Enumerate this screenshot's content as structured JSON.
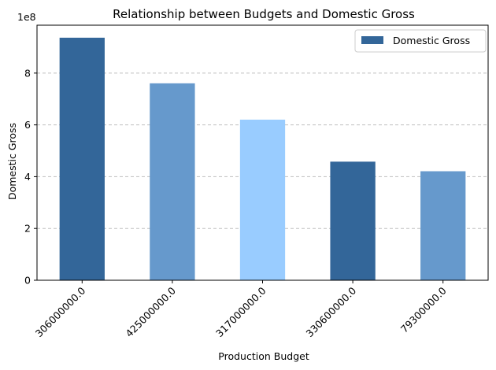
{
  "chart_data": {
    "type": "bar",
    "title": "Relationship between Budgets and Domestic Gross",
    "xlabel": "Production Budget",
    "ylabel": "Domestic Gross",
    "y_scale_label": "1e8",
    "categories": [
      "306000000.0",
      "425000000.0",
      "317000000.0",
      "330600000.0",
      "79300000.0"
    ],
    "series": [
      {
        "name": "Domestic Gross",
        "values": [
          936700000,
          760500000,
          620200000,
          458000000,
          421000000
        ]
      }
    ],
    "bar_colors": [
      "#336699",
      "#6699cc",
      "#99ccff",
      "#336699",
      "#6699cc"
    ],
    "legend_color": "#336699",
    "ylim": [
      0,
      985000000
    ],
    "yticks": [
      0,
      200000000,
      400000000,
      600000000,
      800000000
    ],
    "ytick_labels": [
      "0",
      "2",
      "4",
      "6",
      "8"
    ],
    "grid": "y-dashed",
    "legend_position": "top-right",
    "xtick_rotation": 45
  }
}
